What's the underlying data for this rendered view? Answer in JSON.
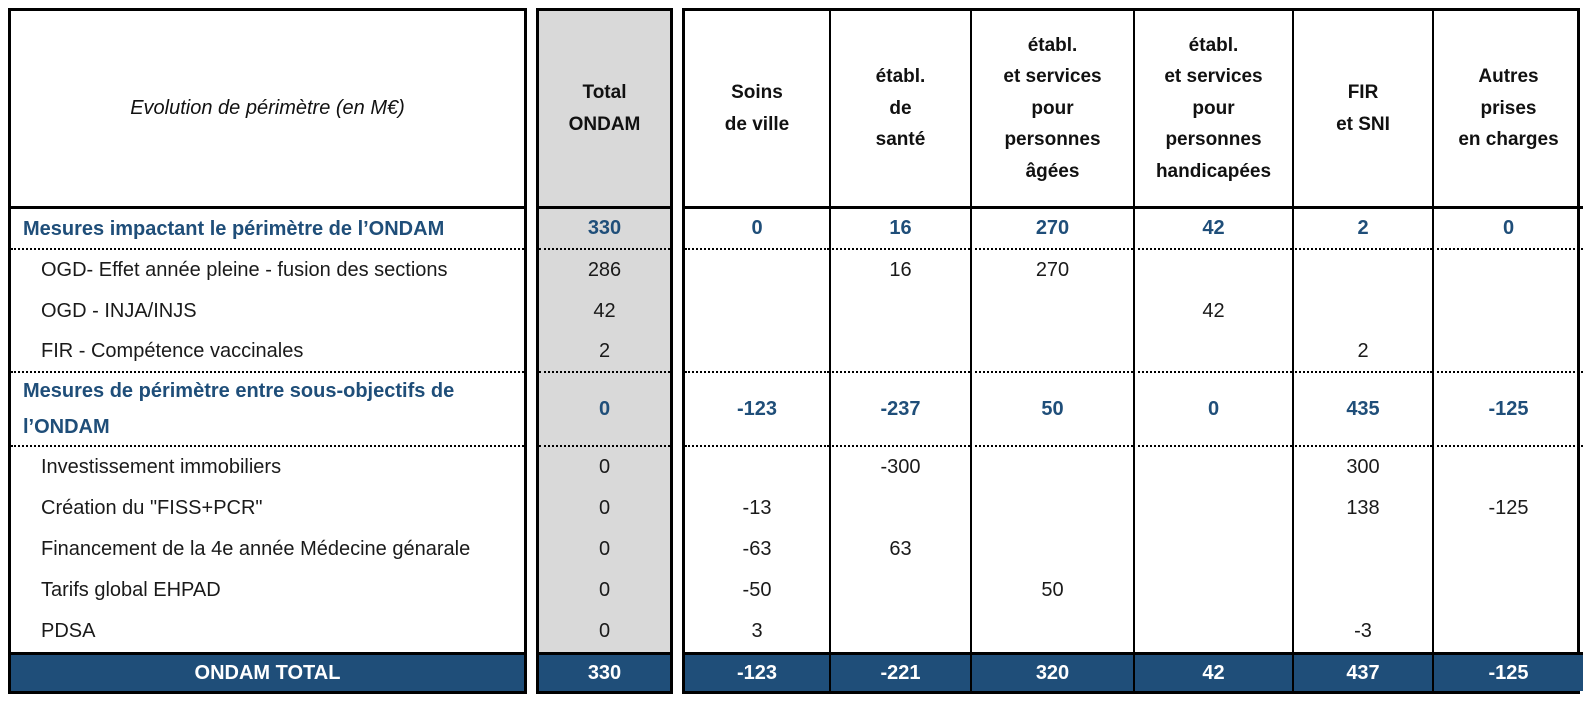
{
  "title": "Evolution de périmètre (en M€)",
  "colors": {
    "blue": "#1F4E79",
    "gray": "#D9D9D9",
    "border": "#000000",
    "total_row_text": "#FFFFFF"
  },
  "header": {
    "corner": "Evolution de périmètre (en M€)",
    "total": "Total\nONDAM",
    "cols": [
      "Soins\nde ville",
      "établ.\nde\nsanté",
      "établ.\net services\npour\npersonnes\nâgées",
      "établ.\net services\npour\npersonnes\nhandicapées",
      "FIR\net SNI",
      "Autres\nprises\nen charges"
    ]
  },
  "rows": [
    {
      "type": "section",
      "label": "Mesures impactant le périmètre de l’ONDAM",
      "total": "330",
      "values": [
        "0",
        "16",
        "270",
        "42",
        "2",
        "0"
      ]
    },
    {
      "type": "detail",
      "label": "OGD- Effet année pleine - fusion des sections",
      "total": "286",
      "values": [
        "",
        "16",
        "270",
        "",
        "",
        ""
      ]
    },
    {
      "type": "detail",
      "label": "OGD - INJA/INJS",
      "total": "42",
      "values": [
        "",
        "",
        "",
        "42",
        "",
        ""
      ]
    },
    {
      "type": "detail",
      "label": "FIR - Compétence vaccinales",
      "total": "2",
      "values": [
        "",
        "",
        "",
        "",
        "2",
        ""
      ]
    },
    {
      "type": "section",
      "label": "Mesures de périmètre entre sous-objectifs de\nl’ONDAM",
      "total": "0",
      "values": [
        "-123",
        "-237",
        "50",
        "0",
        "435",
        "-125"
      ]
    },
    {
      "type": "detail",
      "label": "Investissement immobiliers",
      "total": "0",
      "values": [
        "",
        "-300",
        "",
        "",
        "300",
        ""
      ]
    },
    {
      "type": "detail",
      "label": "Création du \"FISS+PCR\"",
      "total": "0",
      "values": [
        "-13",
        "",
        "",
        "",
        "138",
        "-125"
      ]
    },
    {
      "type": "detail",
      "label": "Financement de la 4e année Médecine génarale",
      "total": "0",
      "values": [
        "-63",
        "63",
        "",
        "",
        "",
        ""
      ]
    },
    {
      "type": "detail",
      "label": "Tarifs global EHPAD",
      "total": "0",
      "values": [
        "-50",
        "",
        "50",
        "",
        "",
        ""
      ]
    },
    {
      "type": "detail",
      "label": "PDSA",
      "total": "0",
      "values": [
        "3",
        "",
        "",
        "",
        "-3",
        ""
      ]
    },
    {
      "type": "total",
      "label": "ONDAM TOTAL",
      "total": "330",
      "values": [
        "-123",
        "-221",
        "320",
        "42",
        "437",
        "-125"
      ]
    }
  ]
}
